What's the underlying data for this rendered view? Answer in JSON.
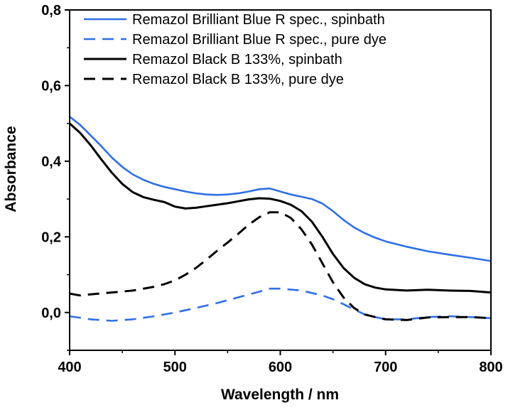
{
  "chart_data": {
    "type": "line",
    "title": "",
    "xlabel": "Wavelength / nm",
    "ylabel": "Absorbance",
    "xlim": [
      400,
      800
    ],
    "ylim": [
      -0.1,
      0.8
    ],
    "x_ticks": [
      400,
      500,
      600,
      700,
      800
    ],
    "x_tick_labels": [
      "400",
      "500",
      "600",
      "700",
      "800"
    ],
    "y_ticks": [
      0.0,
      0.2,
      0.4,
      0.6,
      0.8
    ],
    "y_tick_labels": [
      "0,0",
      "0,2",
      "0,4",
      "0,6",
      "0,8"
    ],
    "legend_position": "top-right",
    "series": [
      {
        "name": "Remazol Brilliant Blue R spec., spinbath",
        "color": "#2f6fe6",
        "dash": "solid",
        "points": [
          [
            400,
            0.518
          ],
          [
            410,
            0.496
          ],
          [
            420,
            0.468
          ],
          [
            430,
            0.44
          ],
          [
            440,
            0.41
          ],
          [
            450,
            0.385
          ],
          [
            460,
            0.365
          ],
          [
            470,
            0.351
          ],
          [
            480,
            0.34
          ],
          [
            490,
            0.332
          ],
          [
            500,
            0.326
          ],
          [
            510,
            0.32
          ],
          [
            520,
            0.315
          ],
          [
            530,
            0.312
          ],
          [
            540,
            0.311
          ],
          [
            550,
            0.312
          ],
          [
            560,
            0.315
          ],
          [
            570,
            0.32
          ],
          [
            580,
            0.326
          ],
          [
            590,
            0.328
          ],
          [
            600,
            0.32
          ],
          [
            610,
            0.312
          ],
          [
            620,
            0.306
          ],
          [
            630,
            0.3
          ],
          [
            640,
            0.288
          ],
          [
            650,
            0.268
          ],
          [
            660,
            0.245
          ],
          [
            670,
            0.225
          ],
          [
            680,
            0.21
          ],
          [
            690,
            0.198
          ],
          [
            700,
            0.188
          ],
          [
            720,
            0.174
          ],
          [
            740,
            0.162
          ],
          [
            760,
            0.153
          ],
          [
            780,
            0.145
          ],
          [
            800,
            0.136
          ]
        ]
      },
      {
        "name": "Remazol Brilliant Blue R spec., pure dye",
        "color": "#2f6fe6",
        "dash": "dashed",
        "points": [
          [
            400,
            -0.01
          ],
          [
            420,
            -0.018
          ],
          [
            440,
            -0.022
          ],
          [
            460,
            -0.018
          ],
          [
            480,
            -0.01
          ],
          [
            500,
            0.0
          ],
          [
            520,
            0.012
          ],
          [
            540,
            0.025
          ],
          [
            560,
            0.04
          ],
          [
            580,
            0.055
          ],
          [
            590,
            0.063
          ],
          [
            600,
            0.063
          ],
          [
            620,
            0.058
          ],
          [
            640,
            0.045
          ],
          [
            650,
            0.035
          ],
          [
            660,
            0.022
          ],
          [
            670,
            0.008
          ],
          [
            680,
            -0.005
          ],
          [
            690,
            -0.012
          ],
          [
            700,
            -0.018
          ],
          [
            720,
            -0.018
          ],
          [
            740,
            -0.012
          ],
          [
            760,
            -0.01
          ],
          [
            780,
            -0.012
          ],
          [
            800,
            -0.015
          ]
        ]
      },
      {
        "name": "Remazol Black B 133%, spinbath",
        "color": "#000000",
        "dash": "solid",
        "points": [
          [
            400,
            0.5
          ],
          [
            410,
            0.475
          ],
          [
            420,
            0.442
          ],
          [
            430,
            0.405
          ],
          [
            440,
            0.37
          ],
          [
            450,
            0.34
          ],
          [
            460,
            0.318
          ],
          [
            470,
            0.305
          ],
          [
            480,
            0.298
          ],
          [
            490,
            0.292
          ],
          [
            500,
            0.28
          ],
          [
            510,
            0.275
          ],
          [
            520,
            0.277
          ],
          [
            530,
            0.281
          ],
          [
            540,
            0.285
          ],
          [
            550,
            0.289
          ],
          [
            560,
            0.294
          ],
          [
            570,
            0.299
          ],
          [
            580,
            0.302
          ],
          [
            590,
            0.301
          ],
          [
            600,
            0.295
          ],
          [
            610,
            0.285
          ],
          [
            620,
            0.268
          ],
          [
            630,
            0.24
          ],
          [
            640,
            0.2
          ],
          [
            650,
            0.155
          ],
          [
            660,
            0.118
          ],
          [
            670,
            0.092
          ],
          [
            680,
            0.075
          ],
          [
            690,
            0.066
          ],
          [
            700,
            0.061
          ],
          [
            720,
            0.058
          ],
          [
            740,
            0.06
          ],
          [
            760,
            0.058
          ],
          [
            780,
            0.057
          ],
          [
            800,
            0.053
          ]
        ]
      },
      {
        "name": "Remazol Black B 133%, pure dye",
        "color": "#000000",
        "dash": "dashed",
        "points": [
          [
            400,
            0.05
          ],
          [
            410,
            0.045
          ],
          [
            420,
            0.048
          ],
          [
            440,
            0.053
          ],
          [
            460,
            0.058
          ],
          [
            480,
            0.068
          ],
          [
            490,
            0.075
          ],
          [
            500,
            0.085
          ],
          [
            510,
            0.1
          ],
          [
            520,
            0.118
          ],
          [
            530,
            0.14
          ],
          [
            540,
            0.163
          ],
          [
            550,
            0.185
          ],
          [
            560,
            0.208
          ],
          [
            570,
            0.232
          ],
          [
            580,
            0.252
          ],
          [
            590,
            0.265
          ],
          [
            600,
            0.265
          ],
          [
            610,
            0.25
          ],
          [
            620,
            0.22
          ],
          [
            630,
            0.18
          ],
          [
            640,
            0.13
          ],
          [
            650,
            0.08
          ],
          [
            660,
            0.04
          ],
          [
            670,
            0.012
          ],
          [
            680,
            -0.005
          ],
          [
            690,
            -0.012
          ],
          [
            700,
            -0.018
          ],
          [
            720,
            -0.02
          ],
          [
            740,
            -0.013
          ],
          [
            760,
            -0.012
          ],
          [
            780,
            -0.012
          ],
          [
            800,
            -0.015
          ]
        ]
      }
    ]
  }
}
